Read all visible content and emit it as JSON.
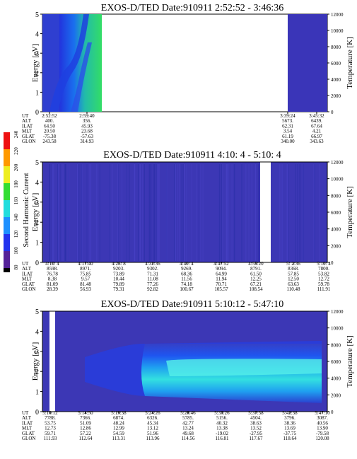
{
  "panels": [
    {
      "title": "EXOS-D/TED   Date:910911  2:52:52 - 3:46:36",
      "energy_ticks": [
        "0",
        "1",
        "2",
        "3",
        "4",
        "5"
      ],
      "temp_ticks": [
        "0",
        "2000",
        "4000",
        "6000",
        "8000",
        "10000",
        "12000"
      ],
      "ylabel": "Energy [eV]",
      "y2label": "Temperature [K]",
      "orbit_rows": [
        "UT",
        "ALT",
        "ILAT",
        "MLT",
        "GLAT",
        "GLON"
      ],
      "orbit_cols": [
        {
          "UT": "2:52:52",
          "ALT": "400.",
          "ILAT": "64.50",
          "MLT": "20.50",
          "GLAT": "-75.38",
          "GLON": "243.58"
        },
        {
          "UT": "2:59:40",
          "ALT": "356.",
          "ILAT": "45.93",
          "MLT": "23.68",
          "GLAT": "-57.63",
          "GLON": "314.93"
        },
        {
          "UT": "3:39:24",
          "ALT": "5673.",
          "ILAT": "62.31",
          "MLT": "3.54",
          "GLAT": "61.19",
          "GLON": "340.00"
        },
        {
          "UT": "3:45:32",
          "ALT": "6439.",
          "ILAT": "67.64",
          "MLT": "4.21",
          "GLAT": "66.97",
          "GLON": "343.63"
        }
      ]
    },
    {
      "title": "EXOS-D/TED   Date:910911  4:10: 4 - 5:10: 4",
      "energy_ticks": [
        "0",
        "1",
        "2",
        "3",
        "4",
        "5"
      ],
      "temp_ticks": [
        "0",
        "2000",
        "4000",
        "6000",
        "8000",
        "10000",
        "12000"
      ],
      "ylabel": "Energy [eV]",
      "y2label": "Temperature [K]",
      "orbit_rows": [
        "UT",
        "ALT",
        "ILAT",
        "MLT",
        "GLAT",
        "GLON"
      ],
      "orbit_cols": [
        {
          "UT": "4:10: 4",
          "ALT": "8598.",
          "ILAT": "76.78",
          "MLT": "8.38",
          "GLAT": "81.09",
          "GLON": "28.39"
        },
        {
          "UT": "4:17:40",
          "ALT": "8971.",
          "ILAT": "75.85",
          "MLT": "9.57",
          "GLAT": "81.48",
          "GLON": "56.93"
        },
        {
          "UT": "4:25: 8",
          "ALT": "9203.",
          "ILAT": "73.89",
          "MLT": "10.44",
          "GLAT": "79.89",
          "GLON": "79.31"
        },
        {
          "UT": "4:32:36",
          "ALT": "9302.",
          "ILAT": "71.31",
          "MLT": "11.08",
          "GLAT": "77.26",
          "GLON": "92.82"
        },
        {
          "UT": "4:40: 4",
          "ALT": "9269.",
          "ILAT": "68.36",
          "MLT": "11.56",
          "GLAT": "74.18",
          "GLON": "100.67"
        },
        {
          "UT": "4:47:52",
          "ALT": "9094.",
          "ILAT": "64.99",
          "MLT": "11.94",
          "GLAT": "70.71",
          "GLON": "105.57"
        },
        {
          "UT": "4:55:20",
          "ALT": "8791.",
          "ILAT": "61.50",
          "MLT": "12.25",
          "GLAT": "67.21",
          "GLON": "108.54"
        },
        {
          "UT": "5: 2:36",
          "ALT": "8368.",
          "ILAT": "57.85",
          "MLT": "12.50",
          "GLAT": "63.63",
          "GLON": "110.48"
        },
        {
          "UT": "5:10: 4",
          "ALT": "7800.",
          "ILAT": "53.82",
          "MLT": "12.72",
          "GLAT": "59.78",
          "GLON": "111.91"
        }
      ]
    },
    {
      "title": "EXOS-D/TED   Date:910911  5:10:12 - 5:47:10",
      "energy_ticks": [
        "0",
        "1",
        "2",
        "3",
        "4",
        "5"
      ],
      "temp_ticks": [
        "0",
        "2000",
        "4000",
        "6000",
        "8000",
        "10000",
        "12000"
      ],
      "ylabel": "Energy [eV]",
      "y2label": "Temperature [K]",
      "orbit_rows": [
        "UT",
        "ALT",
        "ILAT",
        "MLT",
        "GLAT",
        "GLON"
      ],
      "orbit_cols": [
        {
          "UT": "5:10:12",
          "ALT": "7788.",
          "ILAT": "53.75",
          "MLT": "12.73",
          "GLAT": "59.71",
          "GLON": "111.93"
        },
        {
          "UT": "5:14:50",
          "ALT": "7366.",
          "ILAT": "51.09",
          "MLT": "12.86",
          "GLAT": "57.22",
          "GLON": "112.64"
        },
        {
          "UT": "5:19:38",
          "ALT": "6874.",
          "ILAT": "48.24",
          "MLT": "12.99",
          "GLAT": "54.59",
          "GLON": "113.31"
        },
        {
          "UT": "5:24:26",
          "ALT": "6326.",
          "ILAT": "45.34",
          "MLT": "13.12",
          "GLAT": "51.96",
          "GLON": "113.96"
        },
        {
          "UT": "5:28:46",
          "ALT": "5785.",
          "ILAT": "42.77",
          "MLT": "13.24",
          "GLAT": "49.68",
          "GLON": "114.56"
        },
        {
          "UT": "5:33:26",
          "ALT": "5156.",
          "ILAT": "40.32",
          "MLT": "13.38",
          "GLAT": "-19.02",
          "GLON": "116.81"
        },
        {
          "UT": "5:37:58",
          "ALT": "4504.",
          "ILAT": "38.63",
          "MLT": "13.52",
          "GLAT": "-27.95",
          "GLON": "117.67"
        },
        {
          "UT": "5:42:38",
          "ALT": "3796.",
          "ILAT": "38.36",
          "MLT": "13.69",
          "GLAT": "-37.75",
          "GLON": "118.64"
        },
        {
          "UT": "5:47:10",
          "ALT": "3087.",
          "ILAT": "40.56",
          "MLT": "13.90",
          "GLAT": "-79.58",
          "GLON": "120.08"
        }
      ]
    }
  ],
  "colorbar": {
    "label": "Second Harmonic Current",
    "ticks": [
      "80",
      "100",
      "120",
      "140",
      "160",
      "180",
      "200",
      "220",
      "240"
    ]
  },
  "chart_data": [
    {
      "type": "heatmap",
      "title": "EXOS-D/TED   Date:910911  2:52:52 - 3:46:36",
      "ylabel": "Energy [eV]",
      "ylim": [
        0,
        5
      ],
      "y2label": "Temperature [K]",
      "y2lim": [
        0,
        12000
      ],
      "x_ticks": [
        "2:52:52",
        "2:59:40",
        "3:39:24",
        "3:45:32"
      ]
    },
    {
      "type": "heatmap",
      "title": "EXOS-D/TED   Date:910911  4:10: 4 - 5:10: 4",
      "ylabel": "Energy [eV]",
      "ylim": [
        0,
        5
      ],
      "y2label": "Temperature [K]",
      "y2lim": [
        0,
        12000
      ],
      "x_ticks": [
        "4:10: 4",
        "4:17:40",
        "4:25: 8",
        "4:32:36",
        "4:40: 4",
        "4:47:52",
        "4:55:20",
        "5: 2:36",
        "5:10: 4"
      ]
    },
    {
      "type": "heatmap",
      "title": "EXOS-D/TED   Date:910911  5:10:12 - 5:47:10",
      "ylabel": "Energy [eV]",
      "ylim": [
        0,
        5
      ],
      "y2label": "Temperature [K]",
      "y2lim": [
        0,
        12000
      ],
      "x_ticks": [
        "5:10:12",
        "5:14:50",
        "5:19:38",
        "5:24:26",
        "5:28:46",
        "5:33:26",
        "5:37:58",
        "5:42:38",
        "5:47:10"
      ]
    }
  ]
}
